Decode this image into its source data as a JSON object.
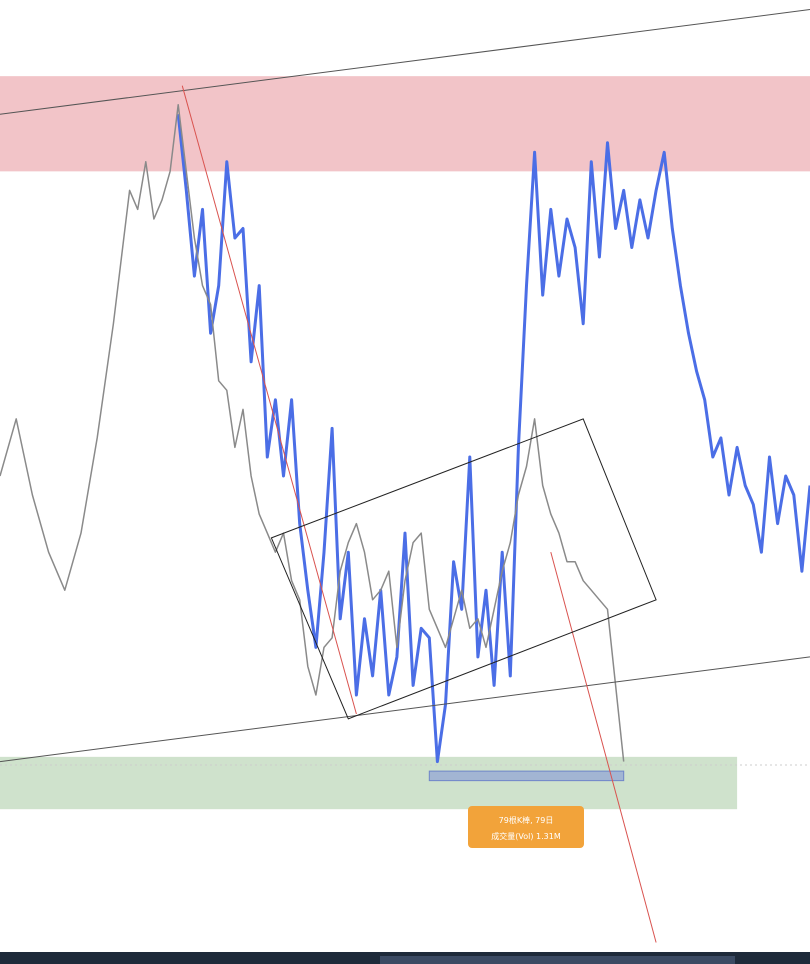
{
  "chart_data": {
    "type": "line",
    "title": "",
    "xlabel": "",
    "ylabel": "",
    "x_range": [
      0,
      100
    ],
    "y_range": [
      0,
      100
    ],
    "grid": false,
    "legend": "none",
    "zones": [
      {
        "name": "resistance-zone",
        "y_low": 82,
        "y_high": 92,
        "x_from": 0,
        "x_to": 100,
        "color": "#f2c4c8"
      },
      {
        "name": "support-zone",
        "y_low": 15,
        "y_high": 20.5,
        "x_from": 0,
        "x_to": 91,
        "color": "#cfe2cc"
      }
    ],
    "trendlines": [
      {
        "name": "upper-trendline",
        "from": [
          0,
          88
        ],
        "to": [
          100,
          99
        ],
        "color": "#555555"
      },
      {
        "name": "lower-trendline",
        "from": [
          0,
          20
        ],
        "to": [
          100,
          31
        ],
        "color": "#555555"
      },
      {
        "name": "descending-trendline-left",
        "from": [
          22.5,
          91
        ],
        "to": [
          44,
          25
        ],
        "color": "#d9534f"
      },
      {
        "name": "descending-trendline-right",
        "from": [
          68,
          42
        ],
        "to": [
          81,
          1
        ],
        "color": "#d9534f"
      }
    ],
    "channel": {
      "corners": [
        [
          33.5,
          43.5
        ],
        [
          72,
          56
        ],
        [
          81,
          37
        ],
        [
          43,
          24.5
        ]
      ],
      "color": "#222222"
    },
    "measure_range": {
      "x_from": 53,
      "x_to": 77,
      "y_low": 18,
      "y_high": 19,
      "color": "#8fa3d6"
    },
    "series": [
      {
        "color": "#4b6ee6",
        "x": [
          22,
          23,
          24,
          25,
          26,
          27,
          28,
          29,
          30,
          31,
          32,
          33,
          34,
          35,
          36,
          37,
          38,
          39,
          40,
          41,
          42,
          43,
          44,
          45,
          46,
          47,
          48,
          49,
          50,
          51,
          52,
          53,
          54,
          55,
          56,
          57,
          58,
          59,
          60,
          61,
          62,
          63,
          64,
          65,
          66,
          67,
          68,
          69,
          70,
          71,
          72,
          73,
          74,
          75,
          76,
          77,
          78,
          79,
          80,
          81,
          82,
          83,
          84,
          85,
          86,
          87,
          88,
          89,
          90,
          91,
          92,
          93,
          94,
          95,
          96,
          97,
          98,
          99,
          100
        ],
        "y": [
          88,
          80,
          71,
          78,
          65,
          70,
          83,
          75,
          76,
          62,
          70,
          52,
          58,
          50,
          58,
          45,
          38,
          32,
          42,
          55,
          35,
          42,
          27,
          35,
          29,
          38,
          27,
          31,
          44,
          28,
          34,
          33,
          20,
          26,
          41,
          36,
          52,
          31,
          38,
          28,
          42,
          29,
          53,
          70,
          84,
          69,
          78,
          71,
          77,
          74,
          66,
          83,
          73,
          85,
          76,
          80,
          74,
          79,
          75,
          80,
          84,
          76,
          70,
          65,
          61,
          58,
          52,
          54,
          48,
          53,
          49,
          47,
          42,
          52,
          45,
          50,
          48,
          40,
          49
        ]
      },
      {
        "color": "#8a8a8a",
        "x": [
          0,
          2,
          4,
          6,
          8,
          10,
          12,
          14,
          16,
          17,
          18,
          19,
          20,
          21,
          22,
          23,
          24,
          25,
          26,
          27,
          28,
          29,
          30,
          31,
          32,
          33,
          34,
          35,
          36,
          37,
          38,
          39,
          40,
          41,
          42,
          43,
          44,
          45,
          46,
          47,
          48,
          49,
          50,
          51,
          52,
          53,
          54,
          55,
          56,
          57,
          58,
          59,
          60,
          61,
          62,
          63,
          64,
          65,
          66,
          67,
          68,
          69,
          70,
          71,
          72,
          73,
          74,
          75,
          76,
          77
        ],
        "y": [
          50,
          56,
          48,
          42,
          38,
          44,
          54,
          66,
          80,
          78,
          83,
          77,
          79,
          82,
          89,
          82,
          75,
          70,
          68,
          60,
          59,
          53,
          57,
          50,
          46,
          44,
          42,
          44,
          39,
          37,
          30,
          27,
          32,
          33,
          40,
          43,
          45,
          42,
          37,
          38,
          40,
          32,
          39,
          43,
          44,
          36,
          34,
          32,
          35,
          38,
          34,
          35,
          32,
          36,
          40,
          43,
          48,
          51,
          56,
          49,
          46,
          44,
          41,
          41,
          39,
          38,
          37,
          36,
          28,
          20
        ]
      }
    ]
  },
  "measure_label": {
    "line1": "79根K棒, 79日",
    "line2": "成交量(Vol) 1.31M"
  },
  "colors": {
    "label_bg": "#f2a33a",
    "background": "#ffffff"
  }
}
